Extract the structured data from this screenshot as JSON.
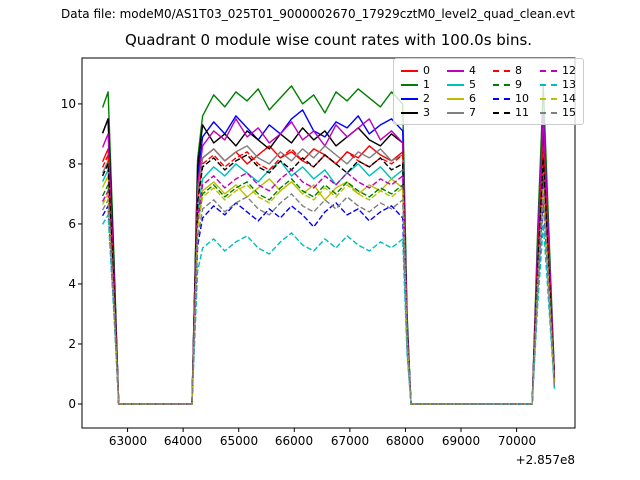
{
  "header": {
    "text": "Data file: modeM0/AS1T03_025T01_9000002670_17929cztM0_level2_quad_clean.evt"
  },
  "chart_data": {
    "type": "line",
    "title": "Quadrant 0 module wise count rates with 100.0s bins.",
    "xlabel": "",
    "ylabel": "",
    "x_offset_label": "+2.857e8",
    "bin_seconds": 100.0,
    "grid": false,
    "legend_position": "upper right",
    "xlim": [
      62180,
      71051
    ],
    "ylim": [
      -0.8,
      11.53
    ],
    "xticks": [
      63000,
      64000,
      65000,
      66000,
      67000,
      68000,
      69000,
      70000
    ],
    "xtick_labels": [
      "63000",
      "64000",
      "65000",
      "66000",
      "67000",
      "68000",
      "69000",
      "70000"
    ],
    "yticks": [
      0,
      2,
      4,
      6,
      8,
      10
    ],
    "ytick_labels": [
      "0",
      "2",
      "4",
      "6",
      "8",
      "10"
    ],
    "envelope": {
      "left_spike": [
        [
          62550,
          0.95
        ],
        [
          62650,
          1.0
        ],
        [
          62760,
          0.45
        ],
        [
          62840,
          0
        ]
      ],
      "gap1_end_x": 64160,
      "ramp_up": [
        64260,
        0.85
      ],
      "plateau_x_start": 64350,
      "plateau_x_step": 200,
      "fall": [
        [
          68030,
          0.3
        ],
        [
          68100,
          0
        ]
      ],
      "gap2_end_x": 70280,
      "right_spike": [
        [
          70380,
          0.55
        ],
        [
          70480,
          1.0
        ],
        [
          70590,
          0.5
        ]
      ],
      "end_x": 70680
    },
    "series": [
      {
        "name": "0",
        "color": "#ff0000",
        "style": "solid",
        "left_peak": 8.5,
        "right_peak": 8.8,
        "end_value": 0.8,
        "plateau": [
          8.2,
          8.5,
          8.1,
          8.4,
          8.0,
          8.3,
          8.6,
          8.2,
          8.4,
          8.1,
          8.5,
          8.3,
          8.0,
          8.4,
          8.2,
          8.6,
          8.3,
          8.1,
          8.4
        ]
      },
      {
        "name": "1",
        "color": "#008000",
        "style": "solid",
        "left_peak": 10.4,
        "right_peak": 10.6,
        "end_value": 1.0,
        "plateau": [
          9.6,
          10.3,
          9.9,
          10.4,
          10.1,
          10.5,
          9.8,
          10.2,
          10.6,
          10.0,
          10.3,
          9.7,
          10.4,
          10.1,
          10.5,
          10.2,
          9.9,
          10.4,
          10.0
        ]
      },
      {
        "name": "2",
        "color": "#0000ff",
        "style": "solid",
        "left_peak": 9.5,
        "right_peak": 9.7,
        "end_value": 0.9,
        "plateau": [
          8.9,
          9.4,
          9.0,
          9.6,
          9.2,
          8.8,
          9.3,
          9.0,
          9.5,
          9.8,
          9.1,
          8.9,
          9.4,
          9.2,
          9.6,
          9.0,
          9.3,
          9.5,
          9.1
        ]
      },
      {
        "name": "3",
        "color": "#000000",
        "style": "solid",
        "left_peak": 9.5,
        "right_peak": 9.4,
        "end_value": 0.85,
        "plateau": [
          9.3,
          8.7,
          9.0,
          8.6,
          9.1,
          8.8,
          8.5,
          9.0,
          8.7,
          9.2,
          8.8,
          9.1,
          8.6,
          8.9,
          9.2,
          8.8,
          8.6,
          9.0,
          8.7
        ]
      },
      {
        "name": "4",
        "color": "#bf00bf",
        "style": "solid",
        "left_peak": 9.0,
        "right_peak": 9.6,
        "end_value": 0.9,
        "plateau": [
          8.6,
          9.1,
          8.8,
          9.5,
          8.9,
          9.2,
          8.7,
          9.0,
          9.4,
          8.8,
          9.1,
          8.6,
          9.3,
          8.9,
          9.2,
          9.5,
          8.8,
          9.1,
          8.7
        ]
      },
      {
        "name": "5",
        "color": "#00bfbf",
        "style": "solid",
        "left_peak": 7.8,
        "right_peak": 8.0,
        "end_value": 0.7,
        "plateau": [
          7.5,
          7.9,
          7.6,
          8.0,
          7.7,
          7.4,
          7.8,
          8.1,
          7.6,
          7.9,
          7.5,
          7.8,
          7.3,
          7.7,
          8.0,
          7.6,
          7.9,
          7.5,
          7.8
        ]
      },
      {
        "name": "6",
        "color": "#bfbf00",
        "style": "solid",
        "left_peak": 7.6,
        "right_peak": 7.8,
        "end_value": 0.65,
        "plateau": [
          7.1,
          7.4,
          7.0,
          7.3,
          6.9,
          7.2,
          7.5,
          7.1,
          7.4,
          7.0,
          7.3,
          6.8,
          7.2,
          7.4,
          7.0,
          7.3,
          7.1,
          7.5,
          7.2
        ]
      },
      {
        "name": "7",
        "color": "#808080",
        "style": "solid",
        "left_peak": 8.1,
        "right_peak": 8.3,
        "end_value": 0.75,
        "plateau": [
          8.2,
          8.5,
          8.1,
          8.4,
          8.6,
          8.2,
          8.0,
          8.4,
          8.1,
          8.5,
          8.2,
          8.6,
          8.3,
          8.0,
          8.4,
          8.2,
          8.5,
          8.1,
          8.3
        ]
      },
      {
        "name": "8",
        "color": "#ff0000",
        "style": "dashed",
        "left_peak": 8.3,
        "right_peak": 8.6,
        "end_value": 0.8,
        "plateau": [
          8.0,
          8.3,
          7.9,
          8.2,
          8.4,
          8.0,
          7.8,
          8.2,
          8.5,
          8.1,
          7.9,
          8.3,
          8.0,
          8.4,
          8.1,
          7.9,
          8.2,
          8.0,
          8.3
        ]
      },
      {
        "name": "9",
        "color": "#008000",
        "style": "dashed",
        "left_peak": 7.3,
        "right_peak": 7.5,
        "end_value": 0.6,
        "plateau": [
          7.0,
          7.3,
          6.9,
          7.2,
          7.4,
          7.0,
          6.8,
          7.2,
          7.5,
          7.1,
          6.9,
          7.3,
          7.0,
          7.4,
          7.1,
          6.9,
          7.2,
          7.0,
          7.3
        ]
      },
      {
        "name": "10",
        "color": "#0000ff",
        "style": "dashed",
        "left_peak": 6.6,
        "right_peak": 6.8,
        "end_value": 0.55,
        "plateau": [
          6.2,
          6.6,
          6.3,
          6.7,
          6.4,
          6.1,
          6.5,
          6.2,
          6.6,
          6.3,
          5.9,
          6.4,
          6.7,
          6.3,
          6.5,
          6.1,
          6.4,
          6.6,
          6.2
        ]
      },
      {
        "name": "11",
        "color": "#000000",
        "style": "dashed",
        "left_peak": 8.0,
        "right_peak": 8.2,
        "end_value": 0.75,
        "plateau": [
          7.9,
          8.2,
          7.8,
          8.1,
          8.3,
          7.9,
          7.7,
          8.1,
          7.8,
          8.2,
          7.9,
          8.3,
          8.0,
          7.7,
          8.1,
          7.9,
          8.2,
          7.8,
          8.0
        ]
      },
      {
        "name": "12",
        "color": "#bf00bf",
        "style": "dashed",
        "left_peak": 7.1,
        "right_peak": 7.3,
        "end_value": 0.65,
        "plateau": [
          7.3,
          7.6,
          7.2,
          7.5,
          7.7,
          7.3,
          7.1,
          7.5,
          7.8,
          7.4,
          7.2,
          7.6,
          7.3,
          7.7,
          7.4,
          7.2,
          7.5,
          7.3,
          7.6
        ]
      },
      {
        "name": "13",
        "color": "#00bfbf",
        "style": "dashed",
        "left_peak": 6.3,
        "right_peak": 6.0,
        "end_value": 0.5,
        "plateau": [
          5.2,
          5.5,
          5.1,
          5.4,
          5.6,
          5.2,
          5.0,
          5.4,
          5.7,
          5.3,
          5.1,
          5.5,
          5.2,
          5.6,
          5.3,
          5.1,
          5.4,
          5.2,
          5.5
        ]
      },
      {
        "name": "14",
        "color": "#bfbf00",
        "style": "dashed",
        "left_peak": 7.0,
        "right_peak": 7.2,
        "end_value": 0.6,
        "plateau": [
          6.9,
          7.2,
          6.8,
          7.1,
          7.3,
          6.9,
          6.7,
          7.1,
          7.4,
          7.0,
          6.8,
          7.2,
          6.9,
          7.3,
          7.0,
          6.8,
          7.1,
          6.9,
          7.2
        ]
      },
      {
        "name": "15",
        "color": "#808080",
        "style": "dashed",
        "left_peak": 6.8,
        "right_peak": 7.0,
        "end_value": 0.6,
        "plateau": [
          6.5,
          6.8,
          6.4,
          6.7,
          6.9,
          6.5,
          6.3,
          6.7,
          7.0,
          6.6,
          6.4,
          6.8,
          6.5,
          6.9,
          6.6,
          6.4,
          6.7,
          6.5,
          6.8
        ]
      }
    ]
  }
}
